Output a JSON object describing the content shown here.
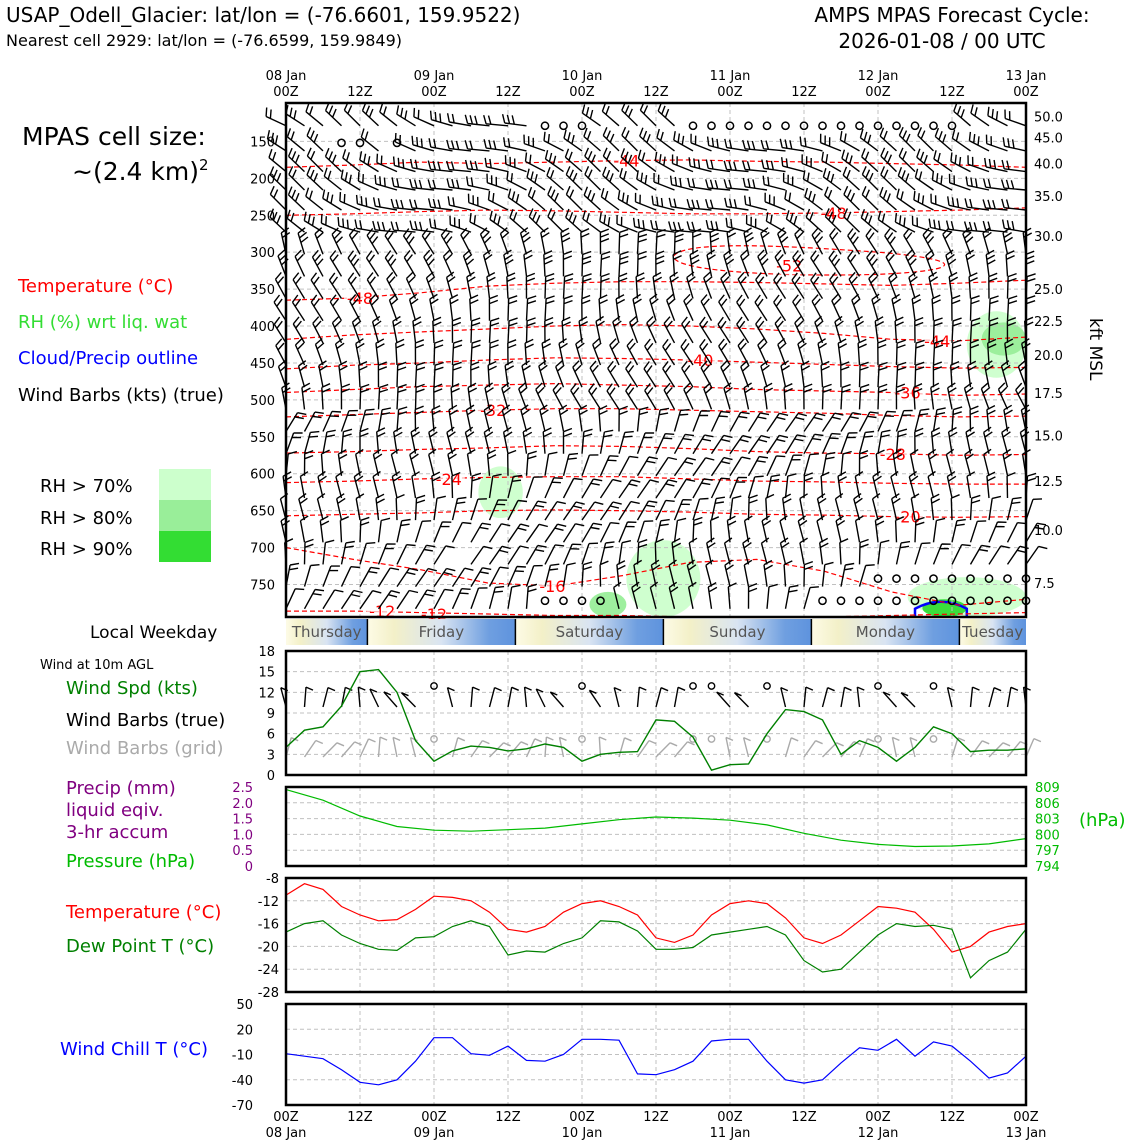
{
  "header": {
    "station_title": "USAP_Odell_Glacier: lat/lon = (-76.6601, 159.9522)",
    "nearest_cell": "Nearest cell 2929: lat/lon = (-76.6599, 159.9849)",
    "cycle_line1": "AMPS MPAS Forecast Cycle:",
    "cycle_line2": "2026-01-08 / 00 UTC"
  },
  "left_labels": {
    "cell_size_line1": "MPAS cell size:",
    "cell_size_line2": "~(2.4 km)",
    "cell_size_sup": "2",
    "temperature": "Temperature (°C)",
    "rh": "RH (%) wrt liq. wat",
    "cloud": "Cloud/Precip outline",
    "wind_barbs": "Wind Barbs (kts) (true)",
    "rh70": "RH > 70%",
    "rh80": "RH > 80%",
    "rh90": "RH > 90%",
    "local_weekday": "Local Weekday",
    "wind10m": "Wind at 10m AGL",
    "wind_spd": "Wind Spd (kts)",
    "wind_barbs_true": "Wind Barbs (true)",
    "wind_barbs_grid": "Wind Barbs (grid)",
    "precip1": "Precip (mm)",
    "precip2": "liquid eqiv.",
    "precip3": "3-hr accum",
    "pressure": "Pressure (hPa)",
    "temperature2": "Temperature (°C)",
    "dewpoint": "Dew Point T (°C)",
    "windchill": "Wind Chill T (°C)",
    "hpa_unit": "(hPa)",
    "kft_label": "kft MSL"
  },
  "colors": {
    "temp": "#ff0000",
    "dewpoint": "#008000",
    "rh_text": "#33dd33",
    "cloud": "#0000ff",
    "windchill": "#0000ff",
    "precip": "#800080",
    "pressure": "#00bb00",
    "rh70": "#ccffcc",
    "rh80": "#99ee99",
    "rh90": "#33dd33",
    "grid_barb": "#aaaaaa"
  },
  "time_axis": {
    "top_dates": [
      "08 Jan",
      "",
      "09 Jan",
      "",
      "10 Jan",
      "",
      "11 Jan",
      "",
      "12 Jan",
      "",
      "13 Jan"
    ],
    "top_hours": [
      "00Z",
      "12Z",
      "00Z",
      "12Z",
      "00Z",
      "12Z",
      "00Z",
      "12Z",
      "00Z",
      "12Z",
      "00Z"
    ],
    "bottom_hours": [
      "00Z",
      "12Z",
      "00Z",
      "12Z",
      "00Z",
      "12Z",
      "00Z",
      "12Z",
      "00Z",
      "12Z",
      "00Z"
    ],
    "bottom_dates": [
      "08 Jan",
      "",
      "09 Jan",
      "",
      "10 Jan",
      "",
      "11 Jan",
      "",
      "12 Jan",
      "",
      "13 Jan"
    ]
  },
  "weekdays": [
    "Thursday",
    "Friday",
    "Saturday",
    "Sunday",
    "Monday",
    "Tuesday"
  ],
  "chart_data": [
    {
      "type": "heatmap",
      "name": "time-height cross section",
      "y_left_ticks": [
        "150",
        "200",
        "250",
        "300",
        "350",
        "400",
        "450",
        "500",
        "550",
        "600",
        "650",
        "700",
        "750"
      ],
      "y_left_values": [
        150,
        200,
        250,
        300,
        350,
        400,
        450,
        500,
        550,
        600,
        650,
        700,
        750
      ],
      "y_right_ticks": [
        "50.0",
        "45.0",
        "40.0",
        "35.0",
        "30.0",
        "25.0",
        "22.5",
        "20.0",
        "17.5",
        "15.0",
        "12.5",
        "10.0",
        "7.5"
      ],
      "y_right_pressure": [
        116,
        145,
        180,
        224,
        278,
        350,
        393,
        439,
        491,
        548,
        610,
        676,
        748
      ],
      "ylim": [
        98,
        794
      ],
      "temperature_contours": [
        {
          "label": "-44",
          "level_hPa": [
            185,
            182,
            178,
            180,
            178,
            176,
            175,
            177,
            178,
            180,
            182,
            185
          ],
          "label_day": 2.3
        },
        {
          "label": "-48",
          "level_hPa": [
            250,
            248,
            245,
            243,
            244,
            246,
            248,
            248,
            247,
            245,
            243,
            240
          ],
          "label_day": 3.7
        },
        {
          "label": "-52",
          "level_hPa": [
            300,
            310,
            330,
            330
          ],
          "label_day": 3.4
        },
        {
          "label": "-48",
          "level_hPa": [
            365,
            362,
            355,
            346,
            342,
            340,
            340,
            341,
            343,
            345,
            342,
            338
          ],
          "label_day": 0.5
        },
        {
          "label": "-44",
          "level_hPa": [
            418,
            412,
            408,
            404,
            400,
            398,
            400,
            404,
            410,
            418,
            420,
            415
          ],
          "label_day": 4.4
        },
        {
          "label": "-40",
          "level_hPa": [
            458,
            453,
            450,
            446,
            443,
            444,
            446,
            449,
            452,
            455,
            457,
            456
          ],
          "label_day": 2.8
        },
        {
          "label": "-36",
          "level_hPa": [
            490,
            486,
            482,
            480,
            478,
            480,
            482,
            486,
            488,
            490,
            494,
            492
          ],
          "label_day": 4.2
        },
        {
          "label": "-32",
          "level_hPa": [
            523,
            520,
            517,
            514,
            512,
            512,
            514,
            516,
            518,
            521,
            523,
            522
          ],
          "label_day": 1.4
        },
        {
          "label": "-28",
          "level_hPa": [
            572,
            570,
            567,
            565,
            562,
            563,
            566,
            570,
            572,
            573,
            575,
            574
          ],
          "label_day": 4.1
        },
        {
          "label": "-24",
          "level_hPa": [
            612,
            610,
            607,
            605,
            604,
            604,
            607,
            610,
            611,
            613,
            614,
            614
          ],
          "label_day": 1.1
        },
        {
          "label": "-20",
          "level_hPa": [
            657,
            655,
            653,
            650,
            649,
            650,
            652,
            655,
            656,
            658,
            659,
            658
          ],
          "label_day": 4.2
        },
        {
          "label": "-16",
          "level_hPa": [
            700,
            716,
            730,
            748,
            752,
            738,
            720,
            716,
            732,
            760,
            778,
            770
          ],
          "label_day": 1.8
        },
        {
          "label": "-12",
          "level_hPa": [
            786,
            786,
            788,
            790,
            792,
            792,
            794,
            794,
            794,
            792,
            790,
            788
          ],
          "label_day": 0.65
        }
      ],
      "temperature_labels": [
        "-44",
        "-48",
        "-52",
        "-48",
        "-44",
        "-40",
        "-36",
        "-32",
        "-28",
        "-24",
        "-20",
        "-16",
        "-12",
        "-12"
      ],
      "rh_patches": [
        {
          "level": "70",
          "day_range": [
            4.6,
            5.0
          ],
          "hPa_range": [
            380,
            470
          ]
        },
        {
          "level": "80",
          "day_range": [
            4.7,
            5.0
          ],
          "hPa_range": [
            395,
            440
          ]
        },
        {
          "level": "70",
          "day_range": [
            1.3,
            1.6
          ],
          "hPa_range": [
            590,
            660
          ]
        },
        {
          "level": "70",
          "day_range": [
            2.3,
            2.8
          ],
          "hPa_range": [
            690,
            794
          ]
        },
        {
          "level": "80",
          "day_range": [
            2.05,
            2.3
          ],
          "hPa_range": [
            760,
            794
          ]
        },
        {
          "level": "70",
          "day_range": [
            4.2,
            5.0
          ],
          "hPa_range": [
            740,
            794
          ]
        },
        {
          "level": "90",
          "day_range": [
            4.3,
            4.6
          ],
          "hPa_range": [
            770,
            794
          ]
        }
      ],
      "cloud_outline": {
        "day_range": [
          4.25,
          4.6
        ],
        "hPa_range": [
          772,
          794
        ]
      }
    },
    {
      "type": "line",
      "name": "wind speed 10m",
      "x_days": [
        0,
        0.125,
        0.25,
        0.375,
        0.5,
        0.625,
        0.75,
        0.875,
        1.0,
        1.125,
        1.25,
        1.375,
        1.5,
        1.625,
        1.75,
        1.875,
        2.0,
        2.125,
        2.25,
        2.375,
        2.5,
        2.625,
        2.75,
        2.875,
        3.0,
        3.125,
        3.25,
        3.375,
        3.5,
        3.625,
        3.75,
        3.875,
        4.0,
        4.125,
        4.25,
        4.375,
        4.5,
        4.625,
        4.75,
        4.875,
        5.0
      ],
      "series": [
        {
          "values": [
            4,
            6.5,
            7,
            10,
            15,
            15.3,
            12,
            5,
            2,
            3.5,
            4.2,
            4,
            3.5,
            3.8,
            4.5,
            4,
            2,
            3,
            3.3,
            3.4,
            8,
            7.8,
            5.5,
            0.7,
            1.5,
            1.6,
            6,
            9.5,
            9.2,
            8,
            3,
            5,
            4,
            2,
            4,
            7,
            6,
            3.4,
            3.6,
            3.6,
            3.8
          ]
        }
      ],
      "ylim": [
        0,
        18
      ],
      "y_ticks": [
        "0",
        "3",
        "6",
        "9",
        "12",
        "15",
        "18"
      ],
      "calm_barb_days": [
        1.0,
        2.0,
        2.75,
        2.875,
        3.25,
        4.0,
        4.375
      ]
    },
    {
      "type": "line",
      "name": "precip and pressure",
      "x_days": [
        0,
        0.25,
        0.5,
        0.75,
        1.0,
        1.25,
        1.5,
        1.75,
        2.0,
        2.25,
        2.5,
        2.75,
        3.0,
        3.25,
        3.5,
        3.75,
        4.0,
        4.25,
        4.5,
        4.75,
        5.0
      ],
      "series": [
        {
          "name": "Pressure (hPa)",
          "values": [
            808.5,
            806.5,
            803.5,
            801.5,
            800.8,
            800.6,
            800.9,
            801.2,
            802.0,
            802.8,
            803.3,
            803.1,
            802.7,
            801.8,
            800.2,
            798.9,
            798.1,
            797.7,
            797.8,
            798.2,
            799.2
          ]
        }
      ],
      "precip_values": [
        0,
        0,
        0,
        0,
        0,
        0,
        0,
        0,
        0,
        0,
        0,
        0,
        0,
        0,
        0,
        0,
        0,
        0,
        0,
        0,
        0
      ],
      "y_left_ticks": [
        "0",
        "0.5",
        "1.0",
        "1.5",
        "2.0",
        "2.5"
      ],
      "y_right_ticks": [
        "794",
        "797",
        "800",
        "803",
        "806",
        "809"
      ],
      "ylim_left": [
        0,
        2.5
      ],
      "ylim_right": [
        794,
        809
      ]
    },
    {
      "type": "line",
      "name": "temperature and dew point",
      "x_days": [
        0,
        0.125,
        0.25,
        0.375,
        0.5,
        0.625,
        0.75,
        0.875,
        1.0,
        1.125,
        1.25,
        1.375,
        1.5,
        1.625,
        1.75,
        1.875,
        2.0,
        2.125,
        2.25,
        2.375,
        2.5,
        2.625,
        2.75,
        2.875,
        3.0,
        3.125,
        3.25,
        3.375,
        3.5,
        3.625,
        3.75,
        3.875,
        4.0,
        4.125,
        4.25,
        4.375,
        4.5,
        4.625,
        4.75,
        4.875,
        5.0
      ],
      "series": [
        {
          "name": "Temperature (°C)",
          "values": [
            -11,
            -9,
            -10,
            -13,
            -14.5,
            -15.5,
            -15.3,
            -13.5,
            -11.2,
            -11.4,
            -12,
            -14,
            -17,
            -17.5,
            -16.5,
            -14,
            -12.5,
            -12,
            -13,
            -14.5,
            -18.5,
            -19.3,
            -18,
            -14.5,
            -12.5,
            -12,
            -12.5,
            -15,
            -18.5,
            -19.5,
            -18,
            -15.5,
            -13,
            -13.3,
            -14,
            -17,
            -21,
            -20,
            -17.5,
            -16.5,
            -16
          ]
        },
        {
          "name": "Dew Point T (°C)",
          "values": [
            -17.5,
            -16,
            -15.5,
            -18,
            -19.5,
            -20.5,
            -20.7,
            -18.5,
            -18.3,
            -16.5,
            -15.5,
            -16.5,
            -21.5,
            -20.8,
            -21,
            -19.5,
            -18.5,
            -15.5,
            -15.7,
            -17.3,
            -20.5,
            -20.5,
            -20.2,
            -18,
            -17.5,
            -17,
            -16.5,
            -18,
            -22.5,
            -24.5,
            -24,
            -21,
            -18,
            -16,
            -16.5,
            -16.3,
            -17,
            -25.5,
            -22.5,
            -21,
            -17
          ]
        }
      ],
      "ylim": [
        -28,
        -8
      ],
      "y_ticks": [
        "-28",
        "-24",
        "-20",
        "-16",
        "-12",
        "-8"
      ]
    },
    {
      "type": "line",
      "name": "wind chill",
      "x_days": [
        0,
        0.125,
        0.25,
        0.375,
        0.5,
        0.625,
        0.75,
        0.875,
        1.0,
        1.125,
        1.25,
        1.375,
        1.5,
        1.625,
        1.75,
        1.875,
        2.0,
        2.125,
        2.25,
        2.375,
        2.5,
        2.625,
        2.75,
        2.875,
        3.0,
        3.125,
        3.25,
        3.375,
        3.5,
        3.625,
        3.75,
        3.875,
        4.0,
        4.125,
        4.25,
        4.375,
        4.5,
        4.625,
        4.75,
        4.875,
        5.0
      ],
      "series": [
        {
          "name": "Wind Chill T (°C)",
          "values": [
            -9,
            -12,
            -15,
            -28,
            -43,
            -46,
            -40,
            -18,
            10,
            10,
            -9,
            -11,
            0,
            -17,
            -18,
            -10,
            8,
            8,
            7,
            -33,
            -34,
            -28,
            -18,
            6,
            8,
            8,
            -18,
            -40,
            -44,
            -40,
            -20,
            -2,
            -5,
            8,
            -12,
            5,
            0,
            -18,
            -38,
            -32,
            -12
          ]
        }
      ],
      "ylim": [
        -70,
        50
      ],
      "y_ticks": [
        "-70",
        "-40",
        "-10",
        "20",
        "50"
      ]
    }
  ]
}
